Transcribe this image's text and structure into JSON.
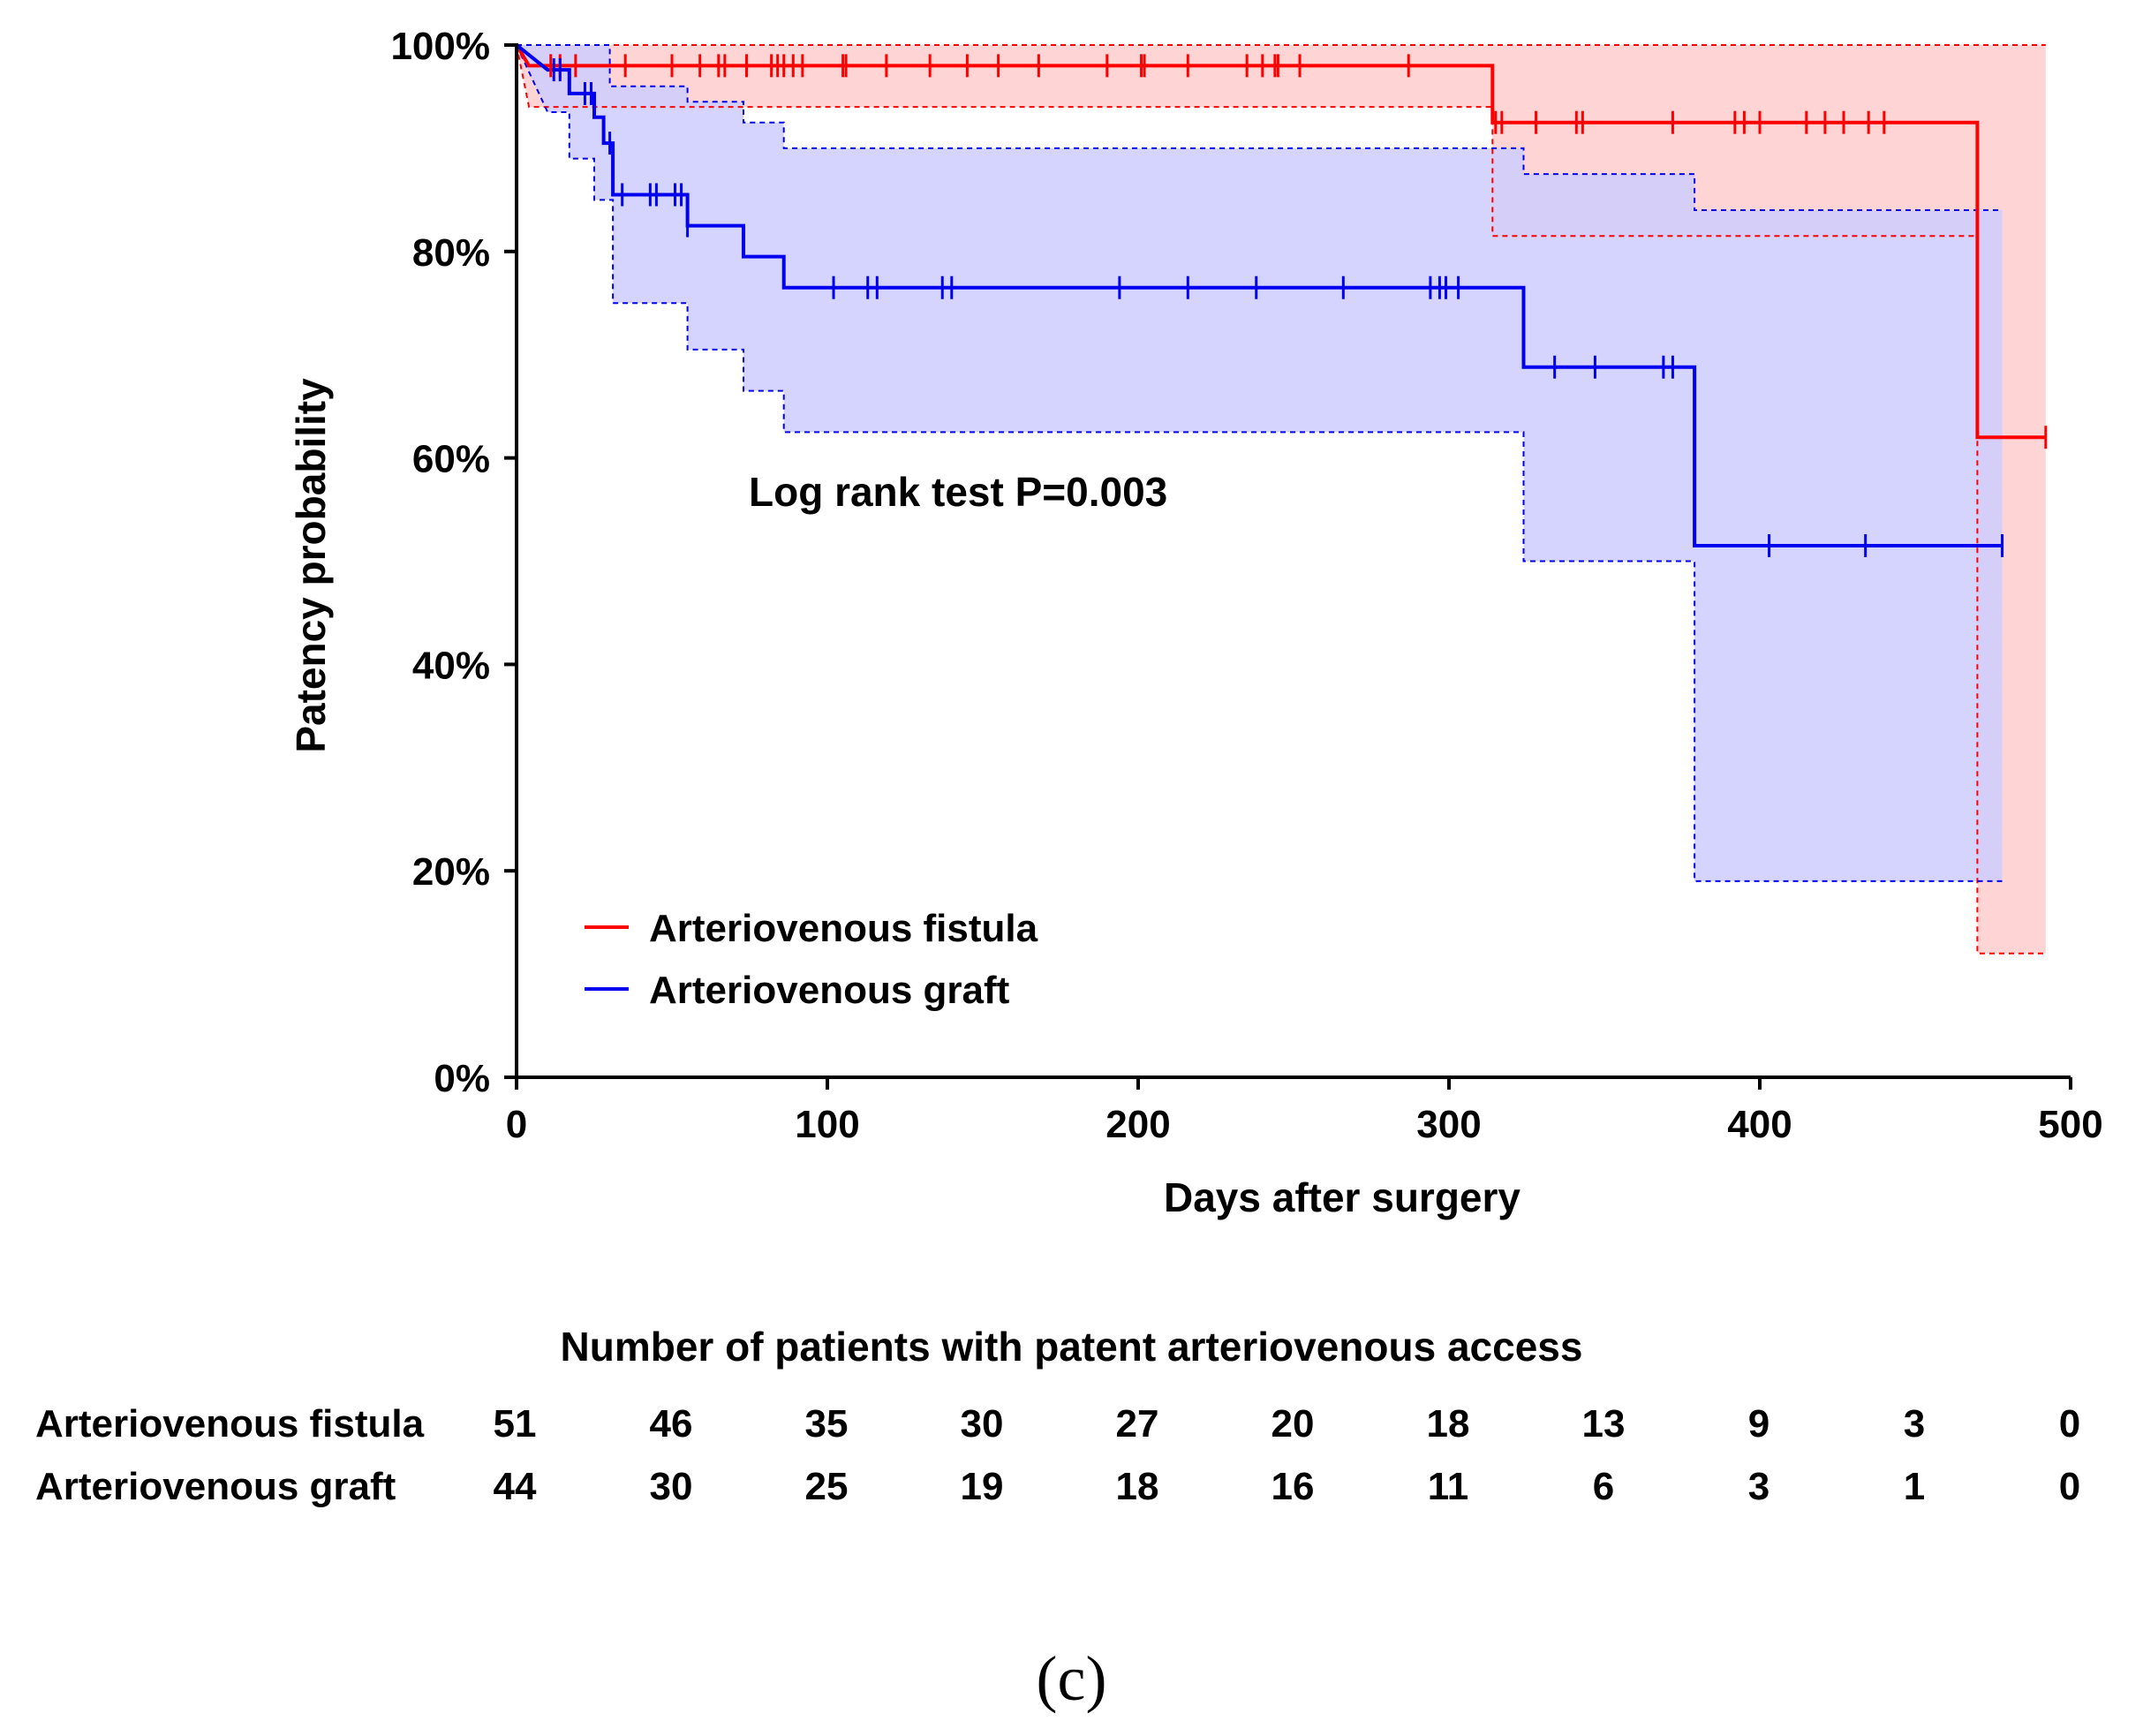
{
  "chart_data": {
    "type": "line",
    "subtype": "kaplan-meier",
    "title": "",
    "xlabel": "Days after surgery",
    "ylabel": "Patency probability",
    "xlim": [
      0,
      500
    ],
    "ylim": [
      0,
      1
    ],
    "xticks": [
      "0",
      "100",
      "200",
      "300",
      "400",
      "500"
    ],
    "yticks": [
      "0%",
      "20%",
      "40%",
      "60%",
      "80%",
      "100%"
    ],
    "annotation": "Log rank test P=0.003",
    "legend_position": "bottom-left",
    "series": [
      {
        "name": "Arteriovenous fistula",
        "color": "#ff0000",
        "fill": "#ffcccc",
        "steps": [
          [
            0,
            1.0
          ],
          [
            4,
            0.98
          ],
          [
            314,
            0.98
          ],
          [
            314,
            0.925
          ],
          [
            470,
            0.925
          ],
          [
            470,
            0.62
          ],
          [
            492,
            0.62
          ]
        ],
        "ci_upper": [
          [
            0,
            1.0
          ],
          [
            492,
            1.0
          ]
        ],
        "ci_lower": [
          [
            0,
            1.0
          ],
          [
            4,
            0.94
          ],
          [
            314,
            0.94
          ],
          [
            314,
            0.815
          ],
          [
            470,
            0.815
          ],
          [
            470,
            0.12
          ],
          [
            492,
            0.12
          ]
        ],
        "censored": [
          11,
          14,
          19,
          35,
          50,
          59,
          65,
          67,
          74,
          82,
          84,
          86,
          89,
          92,
          105,
          106,
          119,
          133,
          145,
          155,
          168,
          190,
          201,
          202,
          216,
          235,
          240,
          244,
          245,
          252,
          287,
          315,
          317,
          328,
          341,
          343,
          372,
          392,
          395,
          400,
          415,
          421,
          427,
          435,
          440,
          492
        ]
      },
      {
        "name": "Arteriovenous graft",
        "color": "#0000ee",
        "fill": "#ccccff",
        "steps": [
          [
            0,
            1.0
          ],
          [
            10,
            0.976
          ],
          [
            17,
            0.976
          ],
          [
            17,
            0.953
          ],
          [
            25,
            0.953
          ],
          [
            25,
            0.93
          ],
          [
            28,
            0.93
          ],
          [
            28,
            0.905
          ],
          [
            31,
            0.905
          ],
          [
            31,
            0.855
          ],
          [
            55,
            0.855
          ],
          [
            55,
            0.825
          ],
          [
            73,
            0.825
          ],
          [
            73,
            0.795
          ],
          [
            86,
            0.795
          ],
          [
            86,
            0.765
          ],
          [
            324,
            0.765
          ],
          [
            324,
            0.688
          ],
          [
            379,
            0.688
          ],
          [
            379,
            0.515
          ],
          [
            478,
            0.515
          ]
        ],
        "ci_upper": [
          [
            0,
            1.0
          ],
          [
            10,
            1.0
          ],
          [
            30,
            1.0
          ],
          [
            30,
            0.96
          ],
          [
            55,
            0.96
          ],
          [
            55,
            0.945
          ],
          [
            73,
            0.945
          ],
          [
            73,
            0.925
          ],
          [
            86,
            0.925
          ],
          [
            86,
            0.9
          ],
          [
            314,
            0.9
          ],
          [
            314,
            0.9
          ],
          [
            324,
            0.9
          ],
          [
            324,
            0.875
          ],
          [
            379,
            0.875
          ],
          [
            379,
            0.84
          ],
          [
            478,
            0.84
          ]
        ],
        "ci_lower": [
          [
            0,
            1.0
          ],
          [
            10,
            0.935
          ],
          [
            17,
            0.935
          ],
          [
            17,
            0.89
          ],
          [
            25,
            0.89
          ],
          [
            25,
            0.85
          ],
          [
            31,
            0.85
          ],
          [
            31,
            0.75
          ],
          [
            55,
            0.75
          ],
          [
            55,
            0.705
          ],
          [
            73,
            0.705
          ],
          [
            73,
            0.665
          ],
          [
            86,
            0.665
          ],
          [
            86,
            0.625
          ],
          [
            324,
            0.625
          ],
          [
            324,
            0.5
          ],
          [
            379,
            0.5
          ],
          [
            379,
            0.19
          ],
          [
            478,
            0.19
          ]
        ],
        "censored": [
          12,
          14,
          22,
          24,
          30,
          34,
          43,
          45,
          51,
          53,
          55,
          102,
          113,
          116,
          137,
          140,
          194,
          216,
          238,
          266,
          294,
          297,
          299,
          303,
          334,
          347,
          369,
          372,
          403,
          434,
          478
        ]
      }
    ]
  },
  "risk_table": {
    "title": "Number of patients with patent arteriovenous access",
    "rows": [
      {
        "label": "Arteriovenous fistula",
        "values": [
          "51",
          "46",
          "35",
          "30",
          "27",
          "20",
          "18",
          "13",
          "9",
          "3",
          "0"
        ]
      },
      {
        "label": "Arteriovenous graft",
        "values": [
          "44",
          "30",
          "25",
          "19",
          "18",
          "16",
          "11",
          "6",
          "3",
          "1",
          "0"
        ]
      }
    ]
  },
  "panel_label": "(c)"
}
